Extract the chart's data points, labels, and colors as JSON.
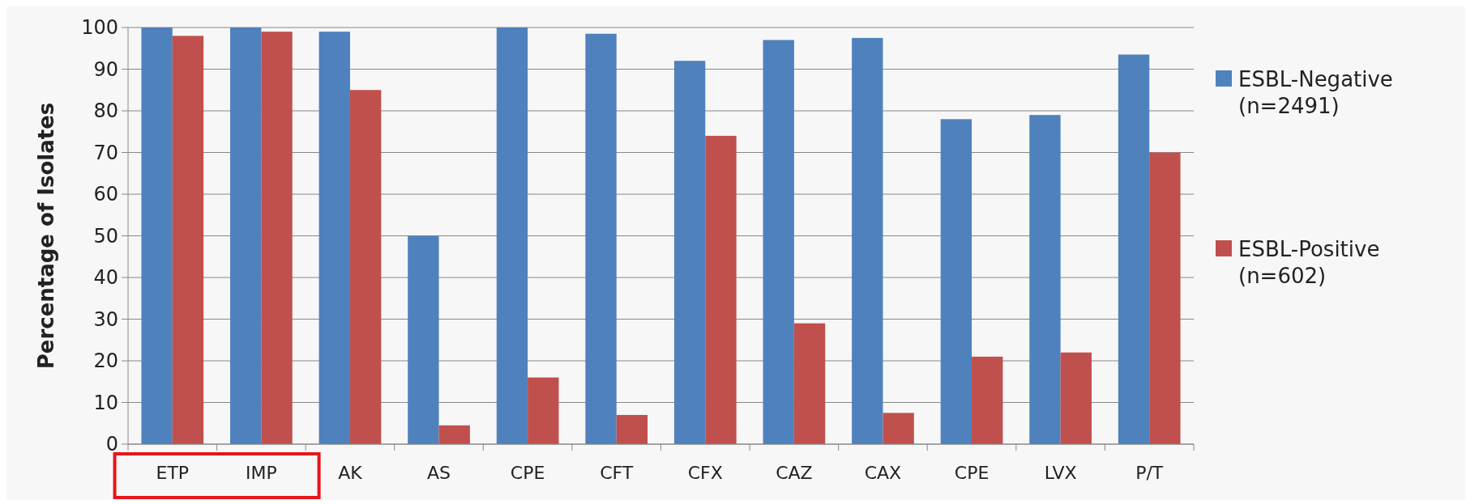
{
  "chart_data": {
    "type": "bar",
    "ylabel": "Percentage of Isolates",
    "categories": [
      "ETP",
      "IMP",
      "AK",
      "AS",
      "CPE",
      "CFT",
      "CFX",
      "CAZ",
      "CAX",
      "CPE",
      "LVX",
      "P/T"
    ],
    "series": [
      {
        "name": "ESBL-Negative (n=2491)",
        "color": "#4f81bd",
        "values": [
          100,
          100,
          99,
          50,
          100,
          98.5,
          92,
          97,
          97.5,
          78,
          79,
          93.5
        ]
      },
      {
        "name": "ESBL-Positive (n=602)",
        "color": "#c0504d",
        "values": [
          98,
          99,
          85,
          4.5,
          16,
          7,
          74,
          29,
          7.5,
          21,
          22,
          70
        ]
      }
    ],
    "ylim": [
      0,
      100
    ],
    "yticks": [
      0,
      10,
      20,
      30,
      40,
      50,
      60,
      70,
      80,
      90,
      100
    ],
    "grid": "y",
    "legend": "right"
  }
}
